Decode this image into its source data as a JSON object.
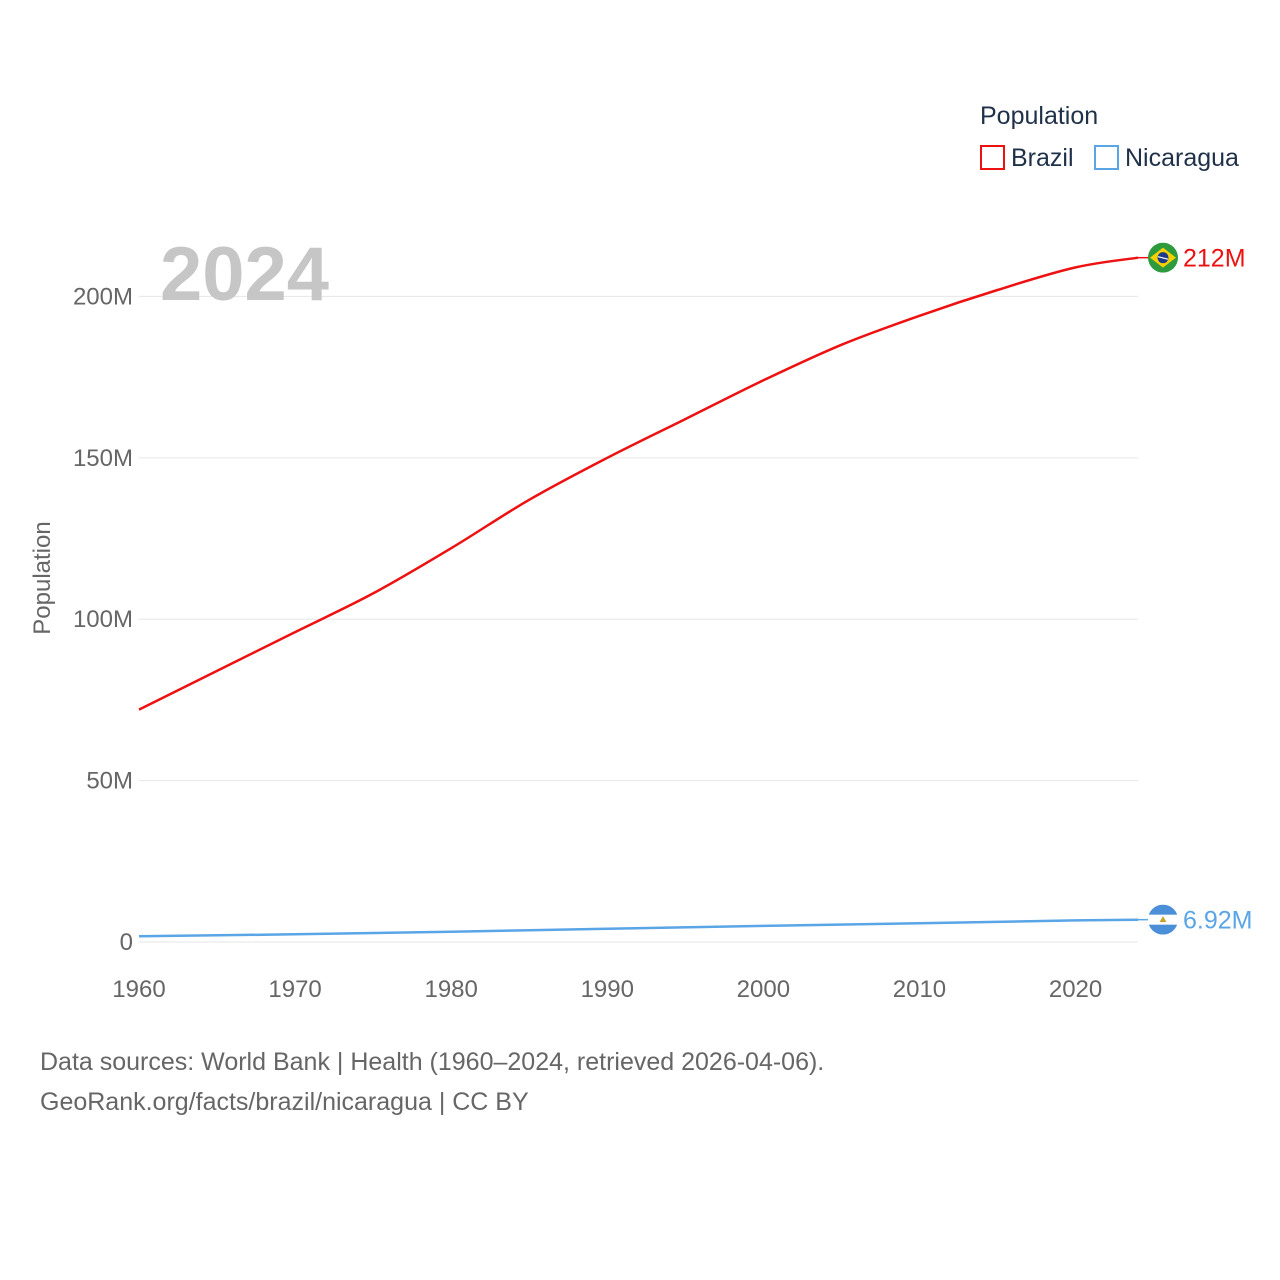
{
  "chart_data": {
    "type": "line",
    "title": "Population",
    "current_year_label": "2024",
    "ylabel": "Population",
    "xlabel": "",
    "xlim": [
      1960,
      2024
    ],
    "ylim": [
      0,
      215000000
    ],
    "x_ticks": [
      1960,
      1970,
      1980,
      1990,
      2000,
      2010,
      2020
    ],
    "x_tick_labels": [
      "1960",
      "1970",
      "1980",
      "1990",
      "2000",
      "2010",
      "2020"
    ],
    "y_ticks": [
      0,
      50000000,
      100000000,
      150000000,
      200000000
    ],
    "y_tick_labels": [
      "0",
      "50M",
      "100M",
      "150M",
      "200M"
    ],
    "grid": true,
    "legend": {
      "title": "Population",
      "position": "top-right"
    },
    "series": [
      {
        "name": "Brazil",
        "color": "#ee1111",
        "end_label": "212M",
        "flag_icon": "brazil-flag-icon",
        "x": [
          1960,
          1965,
          1970,
          1975,
          1980,
          1985,
          1990,
          1995,
          2000,
          2005,
          2010,
          2015,
          2020,
          2024
        ],
        "values": [
          72000000,
          84000000,
          96000000,
          108000000,
          122000000,
          137000000,
          150000000,
          162000000,
          174000000,
          185000000,
          194000000,
          202000000,
          209000000,
          212000000
        ]
      },
      {
        "name": "Nicaragua",
        "color": "#5aa5e6",
        "end_label": "6.92M",
        "flag_icon": "nicaragua-flag-icon",
        "x": [
          1960,
          1970,
          1980,
          1990,
          2000,
          2010,
          2020,
          2024
        ],
        "values": [
          1800000,
          2400000,
          3200000,
          4100000,
          5000000,
          5800000,
          6700000,
          6920000
        ]
      }
    ]
  },
  "footer": {
    "line1": "Data sources: World Bank | Health (1960–2024, retrieved 2026-04-06).",
    "line2": "GeoRank.org/facts/brazil/nicaragua | CC BY"
  }
}
